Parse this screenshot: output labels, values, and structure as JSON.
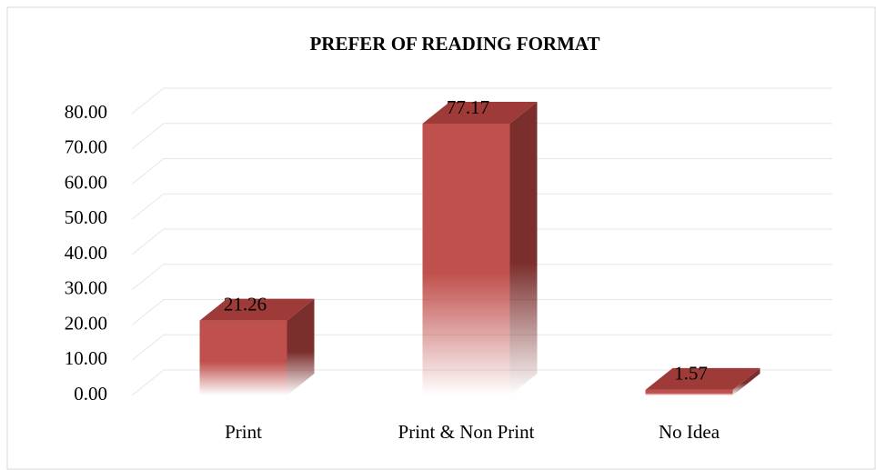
{
  "chart_data": {
    "type": "bar3d",
    "title": "PREFER OF READING FORMAT",
    "categories": [
      "Print",
      "Print & Non Print",
      "No Idea"
    ],
    "values": [
      21.26,
      77.17,
      1.57
    ],
    "color": "#c0504d",
    "ylim": [
      0,
      80
    ],
    "yticks": [
      {
        "value": 0,
        "label": "0.00"
      },
      {
        "value": 10,
        "label": "10.00"
      },
      {
        "value": 20,
        "label": "20.00"
      },
      {
        "value": 30,
        "label": "30.00"
      },
      {
        "value": 40,
        "label": "40.00"
      },
      {
        "value": 50,
        "label": "50.00"
      },
      {
        "value": 60,
        "label": "60.00"
      },
      {
        "value": 70,
        "label": "70.00"
      },
      {
        "value": 80,
        "label": "80.00"
      }
    ],
    "grid": true
  }
}
